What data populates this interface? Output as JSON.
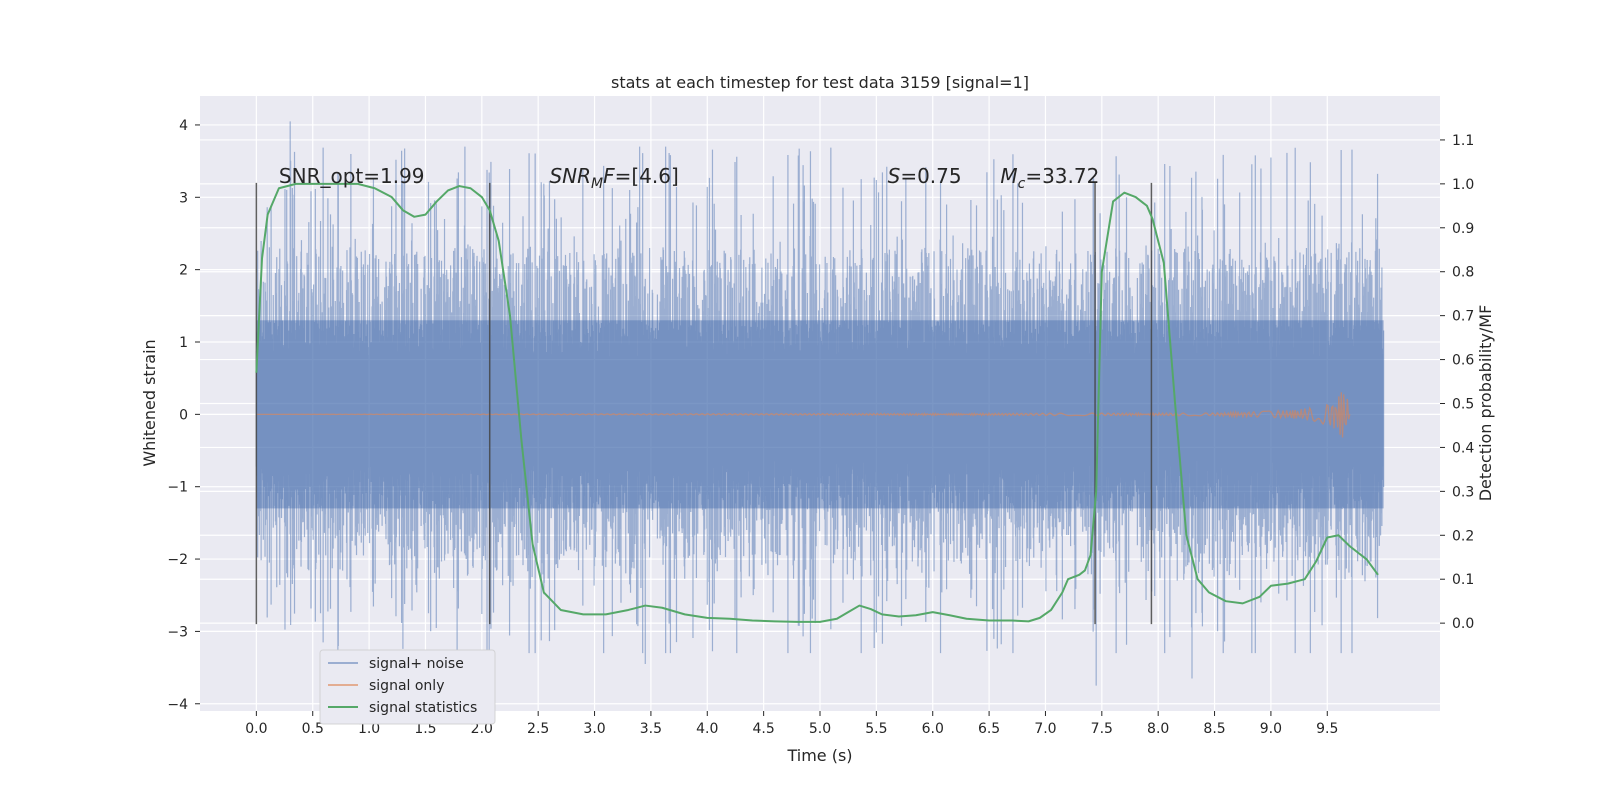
{
  "chart_data": {
    "type": "line",
    "title": "stats at each timestep for test data 3159 [signal=1]",
    "xlabel": "Time (s)",
    "ylabel": "Whitened strain",
    "ylabel_right": "Detection probability/MF",
    "xlim": [
      -0.5,
      10.5
    ],
    "ylim": [
      -4.1,
      4.4
    ],
    "ylim_right": [
      -0.2,
      1.2
    ],
    "x_ticks": [
      0.0,
      0.5,
      1.0,
      1.5,
      2.0,
      2.5,
      3.0,
      3.5,
      4.0,
      4.5,
      5.0,
      5.5,
      6.0,
      6.5,
      7.0,
      7.5,
      8.0,
      8.5,
      9.0,
      9.5
    ],
    "x_tick_labels": [
      "0.0",
      "0.5",
      "1.0",
      "1.5",
      "2.0",
      "2.5",
      "3.0",
      "3.5",
      "4.0",
      "4.5",
      "5.0",
      "5.5",
      "6.0",
      "6.5",
      "7.0",
      "7.5",
      "8.0",
      "8.5",
      "9.0",
      "9.5"
    ],
    "y_ticks": [
      -4,
      -3,
      -2,
      -1,
      0,
      1,
      2,
      3,
      4
    ],
    "y_tick_labels": [
      "−4",
      "−3",
      "−2",
      "−1",
      "0",
      "1",
      "2",
      "3",
      "4"
    ],
    "y_ticks_right": [
      0.0,
      0.1,
      0.2,
      0.3,
      0.4,
      0.5,
      0.6,
      0.7,
      0.8,
      0.9,
      1.0,
      1.1
    ],
    "y_tick_labels_right": [
      "0.0",
      "0.1",
      "0.2",
      "0.3",
      "0.4",
      "0.5",
      "0.6",
      "0.7",
      "0.8",
      "0.9",
      "1.0",
      "1.1"
    ],
    "grid": true,
    "legend_position": "bottom-left",
    "annotations": [
      {
        "prefix": "SNR_opt",
        "sub": "",
        "suffix": "=1.99",
        "x": 0.2,
        "italic": false
      },
      {
        "prefix": "SNR",
        "sub": "M",
        "suffix": "F=[4.6]",
        "x": 2.6,
        "italic": true
      },
      {
        "prefix": "S",
        "sub": "",
        "suffix": "=0.75",
        "x": 5.6,
        "italic": true
      },
      {
        "prefix": "M",
        "sub": "c",
        "suffix": "=33.72",
        "x": 6.6,
        "italic": true
      }
    ],
    "annotation_y": 3.2,
    "vertical_lines": [
      {
        "x": 0.0,
        "y0": -2.9,
        "y1": 3.2
      },
      {
        "x": 2.07,
        "y0": -2.9,
        "y1": 3.2
      },
      {
        "x": 7.44,
        "y0": -2.9,
        "y1": 3.2
      },
      {
        "x": 7.94,
        "y0": -2.9,
        "y1": 3.2
      }
    ],
    "series": [
      {
        "name": "signal+ noise",
        "color": "#4c72b0",
        "opacity": 0.5,
        "x_range": [
          0.0,
          10.0
        ],
        "core_band": [
          -1.3,
          1.3
        ],
        "peak_envelope": [
          -3.3,
          3.7
        ],
        "max_points": [
          {
            "x": 0.3,
            "y": 4.05
          },
          {
            "x": 3.4,
            "y": 3.7
          },
          {
            "x": 1.85,
            "y": 3.7
          },
          {
            "x": 9.0,
            "y": 3.55
          },
          {
            "x": 7.45,
            "y": -3.75
          },
          {
            "x": 8.3,
            "y": -3.65
          },
          {
            "x": 3.45,
            "y": -3.45
          }
        ]
      },
      {
        "name": "signal only",
        "color": "#dd8452",
        "x": [
          0.0,
          8.5,
          8.9,
          9.2,
          9.4,
          9.55,
          9.62,
          9.66,
          9.68,
          9.7
        ],
        "y": [
          0.0,
          0.02,
          0.04,
          0.06,
          0.1,
          0.18,
          0.3,
          0.42,
          0.2,
          0.0
        ],
        "amplitude": [
          0.0,
          0.02,
          0.04,
          0.06,
          0.1,
          0.18,
          0.3,
          0.42,
          0.2,
          0.0
        ],
        "chirp_end": 9.7
      },
      {
        "name": "signal statistics",
        "color": "#55a868",
        "axis": "right",
        "x": [
          0.0,
          0.05,
          0.1,
          0.2,
          0.35,
          0.5,
          0.7,
          0.9,
          1.05,
          1.2,
          1.3,
          1.4,
          1.5,
          1.6,
          1.7,
          1.8,
          1.9,
          2.0,
          2.07,
          2.15,
          2.25,
          2.35,
          2.45,
          2.55,
          2.7,
          2.9,
          3.1,
          3.3,
          3.45,
          3.6,
          3.8,
          4.0,
          4.2,
          4.4,
          4.6,
          4.8,
          5.0,
          5.15,
          5.25,
          5.35,
          5.45,
          5.55,
          5.7,
          5.85,
          6.0,
          6.15,
          6.3,
          6.5,
          6.7,
          6.85,
          6.95,
          7.05,
          7.15,
          7.2,
          7.3,
          7.35,
          7.4,
          7.45,
          7.5,
          7.6,
          7.7,
          7.8,
          7.9,
          7.95,
          8.05,
          8.15,
          8.25,
          8.35,
          8.45,
          8.6,
          8.75,
          8.9,
          9.0,
          9.15,
          9.3,
          9.4,
          9.5,
          9.6,
          9.7,
          9.85,
          9.95
        ],
        "y": [
          0.57,
          0.83,
          0.93,
          0.99,
          1.0,
          1.0,
          1.0,
          1.0,
          0.99,
          0.97,
          0.94,
          0.925,
          0.93,
          0.96,
          0.985,
          0.995,
          0.99,
          0.97,
          0.94,
          0.87,
          0.7,
          0.42,
          0.18,
          0.07,
          0.03,
          0.02,
          0.02,
          0.03,
          0.04,
          0.035,
          0.02,
          0.012,
          0.01,
          0.006,
          0.004,
          0.003,
          0.003,
          0.01,
          0.025,
          0.04,
          0.032,
          0.02,
          0.015,
          0.018,
          0.025,
          0.018,
          0.01,
          0.006,
          0.006,
          0.004,
          0.012,
          0.03,
          0.07,
          0.1,
          0.11,
          0.12,
          0.155,
          0.3,
          0.8,
          0.96,
          0.98,
          0.97,
          0.95,
          0.92,
          0.82,
          0.5,
          0.2,
          0.1,
          0.07,
          0.05,
          0.045,
          0.06,
          0.085,
          0.09,
          0.1,
          0.14,
          0.195,
          0.2,
          0.175,
          0.145,
          0.11
        ]
      }
    ]
  }
}
